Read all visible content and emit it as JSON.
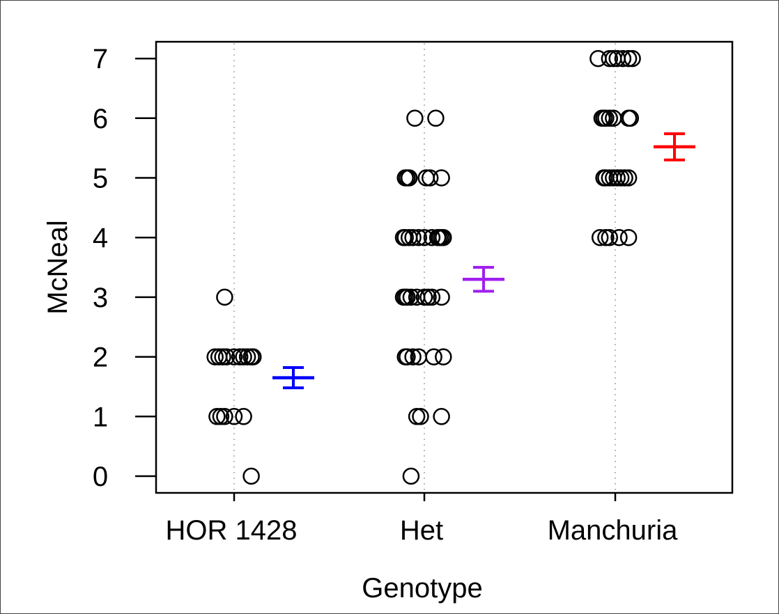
{
  "chart_data": {
    "type": "scatter",
    "title": "",
    "xlabel": "Genotype",
    "ylabel": "McNeal",
    "categories": [
      "HOR 1428",
      "Het",
      "Manchuria"
    ],
    "y_ticks": [
      "0",
      "1",
      "2",
      "3",
      "4",
      "5",
      "6",
      "7"
    ],
    "ylim": [
      -0.25,
      7.3
    ],
    "grid": "dotted vertical lines at each category",
    "points": [
      {
        "category": "HOR 1428",
        "y": 3,
        "jitter": -0.05
      },
      {
        "category": "HOR 1428",
        "y": 2,
        "jitter": -0.1
      },
      {
        "category": "HOR 1428",
        "y": 2,
        "jitter": -0.08
      },
      {
        "category": "HOR 1428",
        "y": 2,
        "jitter": -0.06
      },
      {
        "category": "HOR 1428",
        "y": 2,
        "jitter": -0.04
      },
      {
        "category": "HOR 1428",
        "y": 2,
        "jitter": 0.0
      },
      {
        "category": "HOR 1428",
        "y": 2,
        "jitter": 0.03
      },
      {
        "category": "HOR 1428",
        "y": 2,
        "jitter": 0.05
      },
      {
        "category": "HOR 1428",
        "y": 2,
        "jitter": 0.07
      },
      {
        "category": "HOR 1428",
        "y": 2,
        "jitter": 0.09
      },
      {
        "category": "HOR 1428",
        "y": 2,
        "jitter": 0.1
      },
      {
        "category": "HOR 1428",
        "y": 1,
        "jitter": -0.09
      },
      {
        "category": "HOR 1428",
        "y": 1,
        "jitter": -0.07
      },
      {
        "category": "HOR 1428",
        "y": 1,
        "jitter": -0.05
      },
      {
        "category": "HOR 1428",
        "y": 1,
        "jitter": 0.0
      },
      {
        "category": "HOR 1428",
        "y": 1,
        "jitter": 0.05
      },
      {
        "category": "HOR 1428",
        "y": 0,
        "jitter": 0.09
      },
      {
        "category": "Het",
        "y": 6,
        "jitter": -0.05
      },
      {
        "category": "Het",
        "y": 6,
        "jitter": 0.06
      },
      {
        "category": "Het",
        "y": 5,
        "jitter": -0.1
      },
      {
        "category": "Het",
        "y": 5,
        "jitter": -0.09
      },
      {
        "category": "Het",
        "y": 5,
        "jitter": -0.08
      },
      {
        "category": "Het",
        "y": 5,
        "jitter": 0.01
      },
      {
        "category": "Het",
        "y": 5,
        "jitter": 0.03
      },
      {
        "category": "Het",
        "y": 5,
        "jitter": 0.09
      },
      {
        "category": "Het",
        "y": 4,
        "jitter": -0.11
      },
      {
        "category": "Het",
        "y": 4,
        "jitter": -0.1
      },
      {
        "category": "Het",
        "y": 4,
        "jitter": -0.08
      },
      {
        "category": "Het",
        "y": 4,
        "jitter": -0.06
      },
      {
        "category": "Het",
        "y": 4,
        "jitter": -0.03
      },
      {
        "category": "Het",
        "y": 4,
        "jitter": 0.0
      },
      {
        "category": "Het",
        "y": 4,
        "jitter": 0.04
      },
      {
        "category": "Het",
        "y": 4,
        "jitter": 0.07
      },
      {
        "category": "Het",
        "y": 4,
        "jitter": 0.08
      },
      {
        "category": "Het",
        "y": 4,
        "jitter": 0.09
      },
      {
        "category": "Het",
        "y": 4,
        "jitter": 0.1
      },
      {
        "category": "Het",
        "y": 3,
        "jitter": -0.11
      },
      {
        "category": "Het",
        "y": 3,
        "jitter": -0.1
      },
      {
        "category": "Het",
        "y": 3,
        "jitter": -0.09
      },
      {
        "category": "Het",
        "y": 3,
        "jitter": -0.07
      },
      {
        "category": "Het",
        "y": 3,
        "jitter": -0.04
      },
      {
        "category": "Het",
        "y": 3,
        "jitter": 0.0
      },
      {
        "category": "Het",
        "y": 3,
        "jitter": 0.02
      },
      {
        "category": "Het",
        "y": 3,
        "jitter": 0.04
      },
      {
        "category": "Het",
        "y": 3,
        "jitter": 0.09
      },
      {
        "category": "Het",
        "y": 2,
        "jitter": -0.1
      },
      {
        "category": "Het",
        "y": 2,
        "jitter": -0.09
      },
      {
        "category": "Het",
        "y": 2,
        "jitter": -0.06
      },
      {
        "category": "Het",
        "y": 2,
        "jitter": -0.03
      },
      {
        "category": "Het",
        "y": 2,
        "jitter": 0.05
      },
      {
        "category": "Het",
        "y": 2,
        "jitter": 0.1
      },
      {
        "category": "Het",
        "y": 1,
        "jitter": -0.04
      },
      {
        "category": "Het",
        "y": 1,
        "jitter": -0.02
      },
      {
        "category": "Het",
        "y": 1,
        "jitter": 0.09
      },
      {
        "category": "Het",
        "y": 0,
        "jitter": -0.07
      },
      {
        "category": "Manchuria",
        "y": 7,
        "jitter": -0.09
      },
      {
        "category": "Manchuria",
        "y": 7,
        "jitter": -0.03
      },
      {
        "category": "Manchuria",
        "y": 7,
        "jitter": -0.01
      },
      {
        "category": "Manchuria",
        "y": 7,
        "jitter": 0.01
      },
      {
        "category": "Manchuria",
        "y": 7,
        "jitter": 0.04
      },
      {
        "category": "Manchuria",
        "y": 7,
        "jitter": 0.07
      },
      {
        "category": "Manchuria",
        "y": 7,
        "jitter": 0.09
      },
      {
        "category": "Manchuria",
        "y": 6,
        "jitter": -0.07
      },
      {
        "category": "Manchuria",
        "y": 6,
        "jitter": -0.06
      },
      {
        "category": "Manchuria",
        "y": 6,
        "jitter": -0.05
      },
      {
        "category": "Manchuria",
        "y": 6,
        "jitter": -0.03
      },
      {
        "category": "Manchuria",
        "y": 6,
        "jitter": -0.01
      },
      {
        "category": "Manchuria",
        "y": 6,
        "jitter": 0.07
      },
      {
        "category": "Manchuria",
        "y": 6,
        "jitter": 0.08
      },
      {
        "category": "Manchuria",
        "y": 5,
        "jitter": -0.06
      },
      {
        "category": "Manchuria",
        "y": 5,
        "jitter": -0.05
      },
      {
        "category": "Manchuria",
        "y": 5,
        "jitter": -0.03
      },
      {
        "category": "Manchuria",
        "y": 5,
        "jitter": -0.01
      },
      {
        "category": "Manchuria",
        "y": 5,
        "jitter": 0.01
      },
      {
        "category": "Manchuria",
        "y": 5,
        "jitter": 0.03
      },
      {
        "category": "Manchuria",
        "y": 5,
        "jitter": 0.05
      },
      {
        "category": "Manchuria",
        "y": 5,
        "jitter": 0.07
      },
      {
        "category": "Manchuria",
        "y": 4,
        "jitter": -0.08
      },
      {
        "category": "Manchuria",
        "y": 4,
        "jitter": -0.05
      },
      {
        "category": "Manchuria",
        "y": 4,
        "jitter": -0.03
      },
      {
        "category": "Manchuria",
        "y": 4,
        "jitter": 0.02
      },
      {
        "category": "Manchuria",
        "y": 4,
        "jitter": 0.07
      }
    ],
    "summary": [
      {
        "category": "HOR 1428",
        "mean": 1.65,
        "lower": 1.48,
        "upper": 1.82,
        "color": "#0000ff"
      },
      {
        "category": "Het",
        "mean": 3.3,
        "lower": 3.1,
        "upper": 3.5,
        "color": "#a020f0"
      },
      {
        "category": "Manchuria",
        "mean": 5.52,
        "lower": 5.3,
        "upper": 5.74,
        "color": "#ff0000"
      }
    ]
  }
}
